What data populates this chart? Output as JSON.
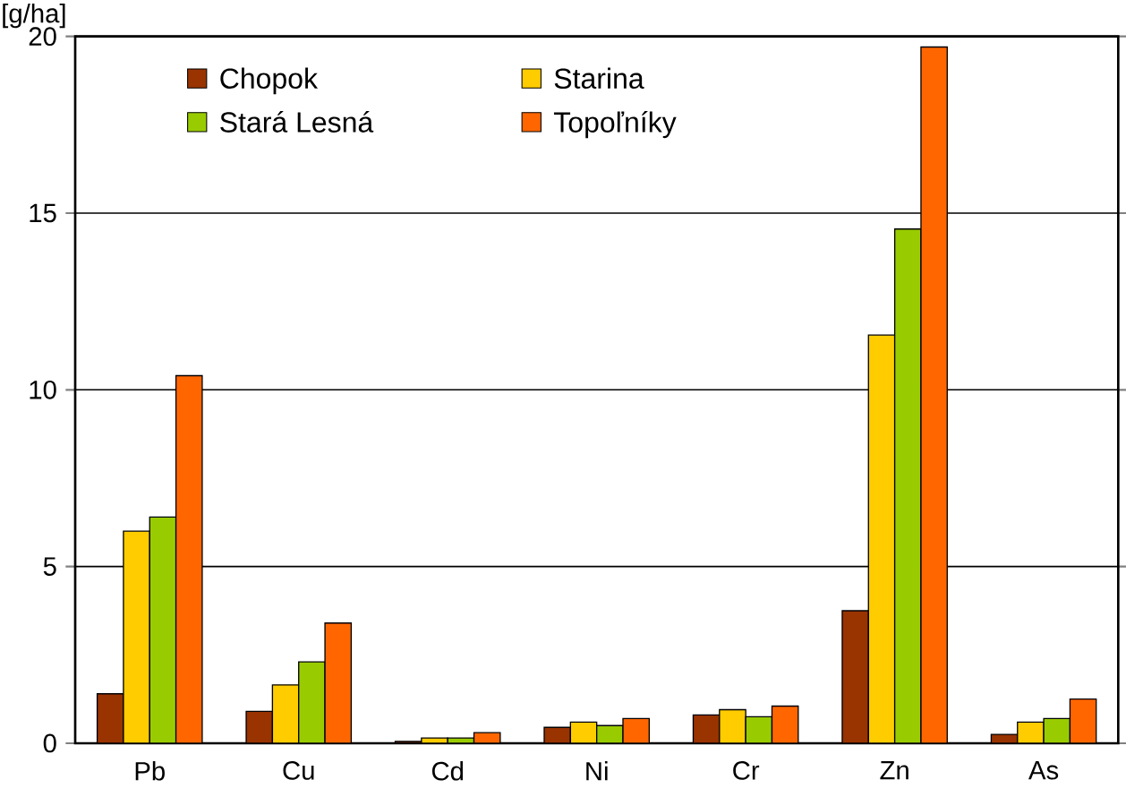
{
  "chart_data": {
    "type": "bar",
    "ylabel": "[g/ha]",
    "categories": [
      "Pb",
      "Cu",
      "Cd",
      "Ni",
      "Cr",
      "Zn",
      "As"
    ],
    "series": [
      {
        "name": "Chopok",
        "color": "#993300",
        "values": [
          1.4,
          0.9,
          0.05,
          0.45,
          0.8,
          3.75,
          0.25
        ]
      },
      {
        "name": "Starina",
        "color": "#ffcc00",
        "values": [
          6.0,
          1.65,
          0.15,
          0.6,
          0.95,
          11.55,
          0.6
        ]
      },
      {
        "name": "Stará Lesná",
        "color": "#99cc00",
        "values": [
          6.4,
          2.3,
          0.15,
          0.5,
          0.75,
          14.55,
          0.7
        ]
      },
      {
        "name": "Topoľníky",
        "color": "#ff6600",
        "values": [
          10.4,
          3.4,
          0.3,
          0.7,
          1.05,
          19.7,
          1.25
        ]
      }
    ],
    "ylim": [
      0,
      20
    ],
    "yticks": [
      0,
      5,
      10,
      15,
      20
    ],
    "grid": "y",
    "legend": "top left"
  }
}
